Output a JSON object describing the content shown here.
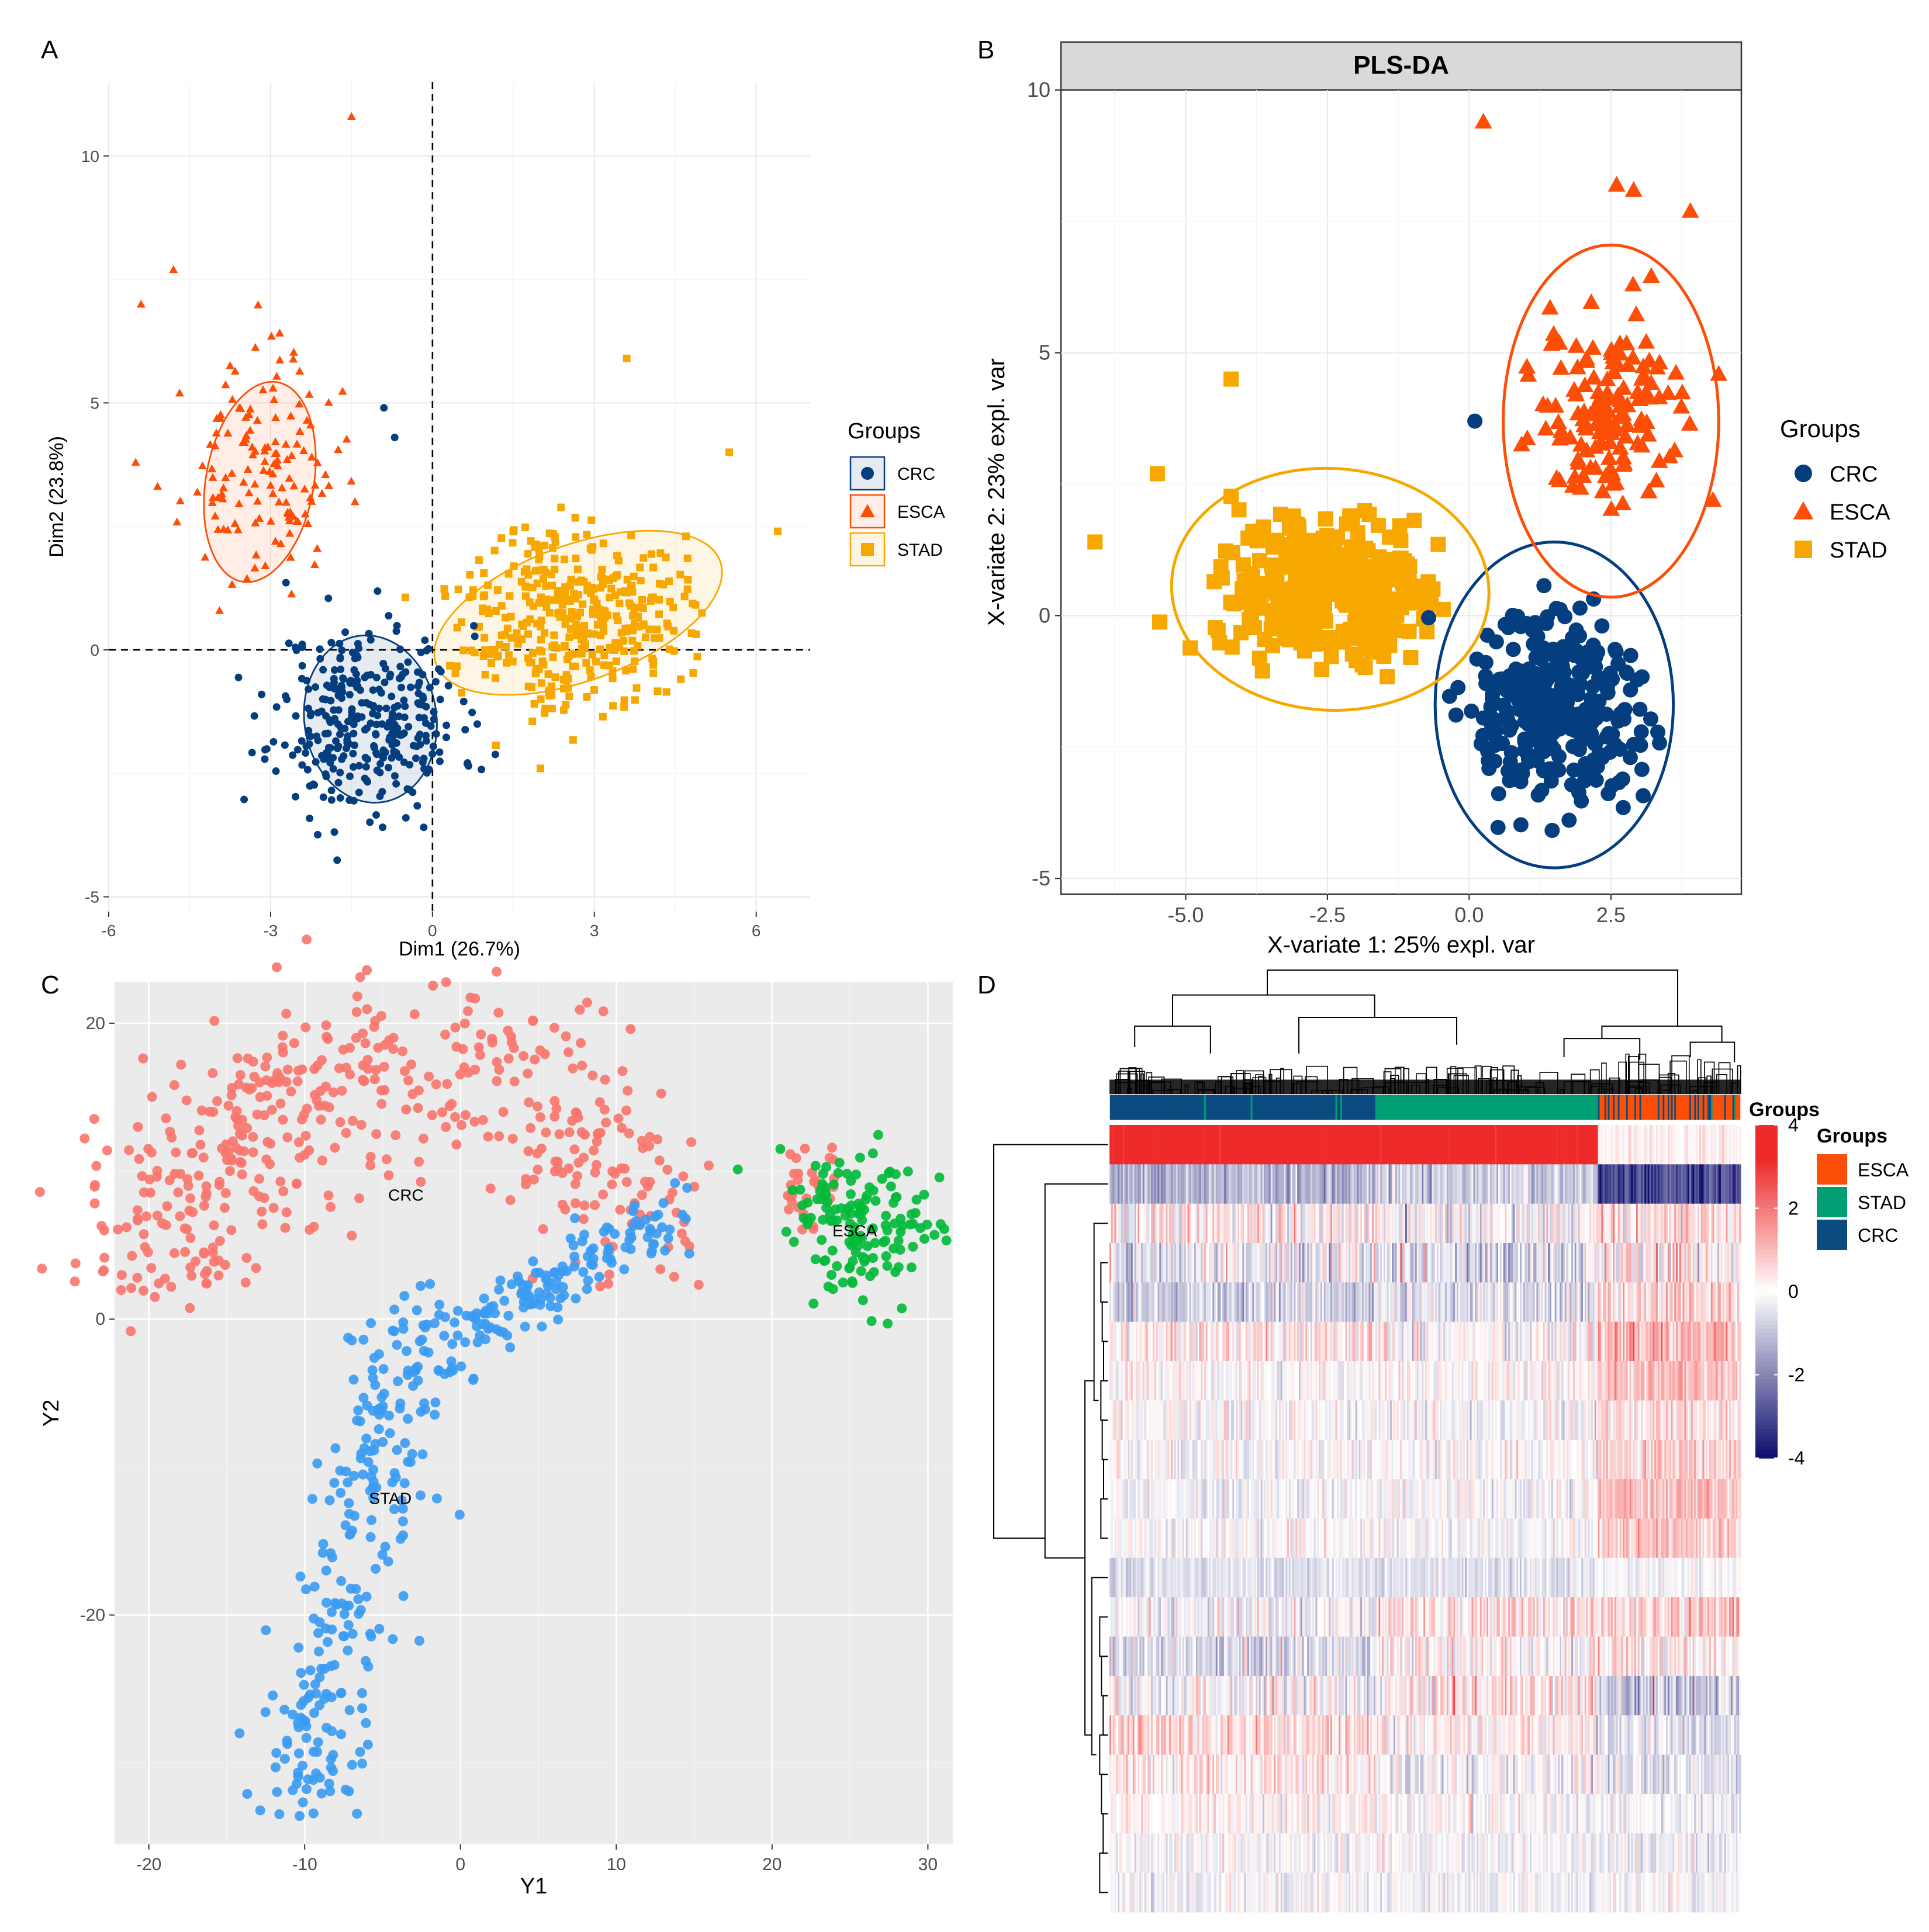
{
  "panels": {
    "A": {
      "letter": "A"
    },
    "B": {
      "letter": "B"
    },
    "C": {
      "letter": "C"
    },
    "D": {
      "letter": "D"
    }
  },
  "colors": {
    "crc": "#053E7E",
    "esca": "#FC4E07",
    "stad": "#F7A800",
    "tsne_crc": "#F8766D",
    "tsne_esca": "#00BA38",
    "tsne_stad": "#3A9BF2",
    "heat_high": "#EE2A2A",
    "heat_mid": "#ffffff",
    "heat_low": "#10106E",
    "anno_esca": "#FC4E07",
    "anno_stad": "#009E73",
    "anno_crc": "#0A4B80"
  },
  "chart_data": [
    {
      "id": "A",
      "type": "scatter",
      "title": "",
      "xlabel": "Dim1 (26.7%)",
      "ylabel": "Dim2 (23.8%)",
      "xlim": [
        -6,
        7
      ],
      "ylim": [
        -5.3,
        11.5
      ],
      "xticks": [
        -6,
        -3,
        0,
        3,
        6
      ],
      "yticks": [
        -5,
        0,
        5,
        10
      ],
      "xtick_labels": [
        "-6",
        "-3",
        "0",
        "3",
        "6"
      ],
      "ytick_labels": [
        "-5",
        "0",
        "5",
        "10"
      ],
      "grid": true,
      "reference_lines": {
        "x": 0,
        "y": 0,
        "style": "dashed"
      },
      "legend": {
        "title": "Groups",
        "placement": "right",
        "entries": [
          "CRC",
          "ESCA",
          "STAD"
        ]
      },
      "series": [
        {
          "name": "CRC",
          "marker": "circle",
          "n": 330,
          "seed": 11,
          "center": [
            -1.2,
            -1.4
          ],
          "sd": [
            0.85,
            0.95
          ],
          "ellipse": {
            "cx": -1.15,
            "cy": -1.4,
            "rx": 2.45,
            "ry": 3.4,
            "angle": 8
          }
        },
        {
          "name": "ESCA",
          "marker": "triangle",
          "n": 140,
          "seed": 23,
          "center": [
            -3.2,
            3.6
          ],
          "sd": [
            0.7,
            1.1
          ],
          "ellipse": {
            "cx": -3.2,
            "cy": 3.4,
            "rx": 2.0,
            "ry": 4.1,
            "angle": -10
          }
        },
        {
          "name": "STAD",
          "marker": "square",
          "n": 380,
          "seed": 37,
          "center": [
            2.6,
            0.7
          ],
          "sd": [
            1.0,
            0.9
          ],
          "ellipse": {
            "cx": 2.7,
            "cy": 0.75,
            "rx": 5.6,
            "ry": 2.75,
            "angle": 20
          }
        }
      ],
      "outliers": [
        {
          "group": "ESCA",
          "x": -1.5,
          "y": 10.8
        },
        {
          "group": "ESCA",
          "x": -4.8,
          "y": 7.7
        },
        {
          "group": "ESCA",
          "x": -5.4,
          "y": 7.0
        },
        {
          "group": "ESCA",
          "x": -5.5,
          "y": 3.8
        },
        {
          "group": "STAD",
          "x": 3.6,
          "y": 5.9
        },
        {
          "group": "STAD",
          "x": 6.4,
          "y": 2.4
        },
        {
          "group": "STAD",
          "x": 5.5,
          "y": 4.0
        },
        {
          "group": "STAD",
          "x": 2.0,
          "y": -2.4
        },
        {
          "group": "CRC",
          "x": -0.9,
          "y": 4.9
        },
        {
          "group": "CRC",
          "x": -0.7,
          "y": 4.3
        }
      ]
    },
    {
      "id": "B",
      "type": "scatter",
      "title": "PLS-DA",
      "xlabel": "X-variate 1: 25% expl. var",
      "ylabel": "X-variate 2: 23% expl. var",
      "xlim": [
        -7.2,
        4.8
      ],
      "ylim": [
        -5.3,
        10.0
      ],
      "xticks": [
        -5,
        -2.5,
        0,
        2.5
      ],
      "yticks": [
        -5,
        0,
        5,
        10
      ],
      "xtick_labels": [
        "-5.0",
        "-2.5",
        "0.0",
        "2.5"
      ],
      "ytick_labels": [
        "-5",
        "0",
        "5",
        "10"
      ],
      "grid": true,
      "legend": {
        "title": "Groups",
        "placement": "right",
        "entries": [
          "CRC",
          "ESCA",
          "STAD"
        ]
      },
      "series": [
        {
          "name": "CRC",
          "marker": "circle",
          "n": 320,
          "seed": 51,
          "center": [
            1.55,
            -1.8
          ],
          "sd": [
            0.75,
            0.9
          ],
          "ellipse": {
            "cx": 1.5,
            "cy": -1.7,
            "rx": 4.2,
            "ry": 6.2,
            "angle": 0
          }
        },
        {
          "name": "ESCA",
          "marker": "triangle",
          "n": 140,
          "seed": 63,
          "center": [
            2.45,
            3.9
          ],
          "sd": [
            0.55,
            0.85
          ],
          "ellipse": {
            "cx": 2.5,
            "cy": 3.7,
            "rx": 3.8,
            "ry": 6.7,
            "angle": 0
          }
        },
        {
          "name": "STAD",
          "marker": "square",
          "n": 380,
          "seed": 79,
          "center": [
            -2.5,
            0.55
          ],
          "sd": [
            0.95,
            0.65
          ],
          "ellipse": {
            "cx": -2.45,
            "cy": 0.5,
            "rx": 5.6,
            "ry": 4.6,
            "angle": -3
          }
        }
      ],
      "outliers": [
        {
          "group": "ESCA",
          "x": 0.25,
          "y": 9.4
        },
        {
          "group": "ESCA",
          "x": 2.6,
          "y": 8.2
        },
        {
          "group": "ESCA",
          "x": 2.9,
          "y": 8.1
        },
        {
          "group": "ESCA",
          "x": 3.9,
          "y": 7.7
        },
        {
          "group": "ESCA",
          "x": 4.3,
          "y": 2.2
        },
        {
          "group": "ESCA",
          "x": 4.4,
          "y": 4.6
        },
        {
          "group": "STAD",
          "x": -4.2,
          "y": 4.5
        },
        {
          "group": "STAD",
          "x": -6.6,
          "y": 1.4
        },
        {
          "group": "STAD",
          "x": -5.5,
          "y": 2.7
        },
        {
          "group": "CRC",
          "x": 0.1,
          "y": 3.7
        }
      ]
    },
    {
      "id": "C",
      "type": "scatter",
      "title": "",
      "xlabel": "Y1",
      "ylabel": "Y2",
      "xlim": [
        -22.2,
        31.6
      ],
      "ylim": [
        -35.5,
        22.8
      ],
      "xticks": [
        -20,
        -10,
        0,
        10,
        20,
        30
      ],
      "yticks": [
        -20,
        0,
        20
      ],
      "xtick_labels": [
        "-20",
        "-10",
        "0",
        "10",
        "20",
        "30"
      ],
      "ytick_labels": [
        "-20",
        "0",
        "20"
      ],
      "grid": true,
      "cluster_labels": [
        {
          "text": "CRC",
          "x": -3.5,
          "y": 8.0
        },
        {
          "text": "ESCA",
          "x": 25.3,
          "y": 5.6
        },
        {
          "text": "STAD",
          "x": -4.5,
          "y": -12.5
        }
      ],
      "series": [
        {
          "name": "CRC",
          "n": 480,
          "seed": 91
        },
        {
          "name": "STAD",
          "n": 400,
          "seed": 103
        },
        {
          "name": "ESCA",
          "n": 140,
          "seed": 117
        }
      ]
    },
    {
      "id": "D",
      "type": "heatmap",
      "rows": 20,
      "cols": 380,
      "column_groups": [
        {
          "name": "CRC",
          "start": 0.0,
          "end": 0.42
        },
        {
          "name": "STAD",
          "start": 0.42,
          "end": 0.775
        },
        {
          "name": "ESCA",
          "start": 0.775,
          "end": 1.0
        }
      ],
      "annotation_title": "Groups",
      "colorbar": {
        "ticks": [
          4,
          2,
          0,
          -2,
          -4
        ],
        "tick_labels": [
          "4",
          "2",
          "0",
          "-2",
          "-4"
        ],
        "min": -4,
        "max": 4
      },
      "legend": {
        "title": "Groups",
        "entries": [
          "ESCA",
          "STAD",
          "CRC"
        ]
      },
      "seed": 211
    }
  ]
}
